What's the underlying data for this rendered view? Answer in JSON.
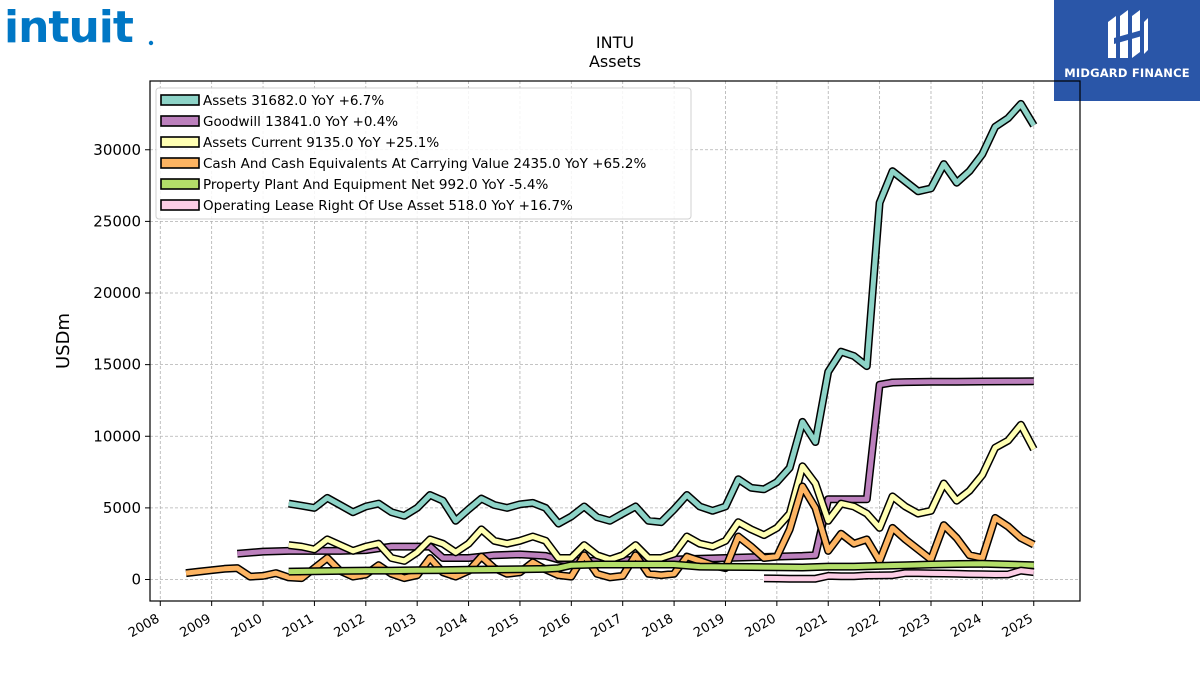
{
  "branding": {
    "left_logo_text": "intuit.",
    "right_logo_text": "MIDGARD FINANCE",
    "left_logo_color": "#0077c5",
    "right_logo_bg": "#2a56a8"
  },
  "chart_data": {
    "type": "line",
    "title": "INTU",
    "subtitle": "Assets",
    "xlabel": "",
    "ylabel": "USDm",
    "xlim": [
      2007.8,
      2025.9
    ],
    "ylim": [
      -1500,
      34800
    ],
    "yticks": [
      0,
      5000,
      10000,
      15000,
      20000,
      25000,
      30000
    ],
    "xticks": [
      "2008",
      "2009",
      "2010",
      "2011",
      "2012",
      "2013",
      "2014",
      "2015",
      "2016",
      "2017",
      "2018",
      "2019",
      "2020",
      "2021",
      "2022",
      "2023",
      "2024",
      "2025"
    ],
    "grid": true,
    "legend_position": "top-left",
    "series": [
      {
        "name": "Assets  31682.0 YoY +6.7%",
        "color": "#8dd3c7",
        "x": [
          2010.5,
          2010.75,
          2011.0,
          2011.25,
          2011.5,
          2011.75,
          2012.0,
          2012.25,
          2012.5,
          2012.75,
          2013.0,
          2013.25,
          2013.5,
          2013.75,
          2014.0,
          2014.25,
          2014.5,
          2014.75,
          2015.0,
          2015.25,
          2015.5,
          2015.75,
          2016.0,
          2016.25,
          2016.5,
          2016.75,
          2017.0,
          2017.25,
          2017.5,
          2017.75,
          2018.0,
          2018.25,
          2018.5,
          2018.75,
          2019.0,
          2019.25,
          2019.5,
          2019.75,
          2020.0,
          2020.25,
          2020.5,
          2020.75,
          2021.0,
          2021.25,
          2021.5,
          2021.75,
          2022.0,
          2022.25,
          2022.5,
          2022.75,
          2023.0,
          2023.25,
          2023.5,
          2023.75,
          2024.0,
          2024.25,
          2024.5,
          2024.75,
          2025.0
        ],
        "y": [
          5300,
          5150,
          5000,
          5700,
          5200,
          4700,
          5100,
          5300,
          4700,
          4450,
          5000,
          5900,
          5500,
          4100,
          4900,
          5650,
          5200,
          5000,
          5250,
          5350,
          5000,
          3900,
          4400,
          5100,
          4350,
          4100,
          4600,
          5100,
          4100,
          4000,
          4900,
          5900,
          5100,
          4800,
          5100,
          7000,
          6400,
          6300,
          6800,
          7800,
          11000,
          9600,
          14500,
          15900,
          15600,
          14900,
          26300,
          28500,
          27800,
          27100,
          27300,
          29000,
          27700,
          28500,
          29700,
          31600,
          32200,
          33200,
          31700
        ]
      },
      {
        "name": "Goodwill  13841.0 YoY +0.4%",
        "color": "#bc80bd",
        "x": [
          2009.5,
          2010.0,
          2010.5,
          2011.0,
          2011.5,
          2012.0,
          2012.5,
          2013.0,
          2013.25,
          2013.5,
          2014.0,
          2014.5,
          2015.0,
          2015.5,
          2015.75,
          2016.0,
          2016.5,
          2017.0,
          2017.5,
          2018.0,
          2018.5,
          2019.0,
          2019.5,
          2020.0,
          2020.5,
          2020.75,
          2021.0,
          2021.25,
          2021.5,
          2021.75,
          2022.0,
          2022.25,
          2022.5,
          2023.0,
          2023.5,
          2024.0,
          2024.5,
          2025.0
        ],
        "y": [
          1800,
          1950,
          2000,
          2000,
          2000,
          2050,
          2300,
          2300,
          2300,
          1500,
          1500,
          1700,
          1750,
          1650,
          1400,
          1300,
          1300,
          1350,
          1400,
          1400,
          1450,
          1500,
          1550,
          1600,
          1650,
          1700,
          5600,
          5600,
          5600,
          5600,
          13600,
          13750,
          13780,
          13800,
          13800,
          13820,
          13830,
          13841
        ]
      },
      {
        "name": "Assets Current  9135.0 YoY +25.1%",
        "color": "#ffffb3",
        "x": [
          2010.5,
          2010.75,
          2011.0,
          2011.25,
          2011.5,
          2011.75,
          2012.0,
          2012.25,
          2012.5,
          2012.75,
          2013.0,
          2013.25,
          2013.5,
          2013.75,
          2014.0,
          2014.25,
          2014.5,
          2014.75,
          2015.0,
          2015.25,
          2015.5,
          2015.75,
          2016.0,
          2016.25,
          2016.5,
          2016.75,
          2017.0,
          2017.25,
          2017.5,
          2017.75,
          2018.0,
          2018.25,
          2018.5,
          2018.75,
          2019.0,
          2019.25,
          2019.5,
          2019.75,
          2020.0,
          2020.25,
          2020.5,
          2020.75,
          2021.0,
          2021.25,
          2021.5,
          2021.75,
          2022.0,
          2022.25,
          2022.5,
          2022.75,
          2023.0,
          2023.25,
          2023.5,
          2023.75,
          2024.0,
          2024.25,
          2024.5,
          2024.75,
          2025.0
        ],
        "y": [
          2400,
          2300,
          2100,
          2800,
          2400,
          2000,
          2300,
          2500,
          1500,
          1300,
          1900,
          2800,
          2500,
          1900,
          2500,
          3500,
          2700,
          2500,
          2700,
          3000,
          2700,
          1500,
          1500,
          2400,
          1700,
          1400,
          1700,
          2400,
          1500,
          1500,
          1800,
          3000,
          2500,
          2300,
          2700,
          4000,
          3500,
          3100,
          3600,
          4600,
          7900,
          6700,
          4100,
          5300,
          5100,
          4600,
          3600,
          5800,
          5100,
          4600,
          4800,
          6700,
          5500,
          6200,
          7300,
          9200,
          9700,
          10800,
          9100
        ]
      },
      {
        "name": "Cash And Cash Equivalents At Carrying Value  2435.0 YoY +65.2%",
        "color": "#fdb462",
        "x": [
          2008.5,
          2008.75,
          2009.0,
          2009.25,
          2009.5,
          2009.75,
          2010.0,
          2010.25,
          2010.5,
          2010.75,
          2011.0,
          2011.25,
          2011.5,
          2011.75,
          2012.0,
          2012.25,
          2012.5,
          2012.75,
          2013.0,
          2013.25,
          2013.5,
          2013.75,
          2014.0,
          2014.25,
          2014.5,
          2014.75,
          2015.0,
          2015.25,
          2015.5,
          2015.75,
          2016.0,
          2016.25,
          2016.5,
          2016.75,
          2017.0,
          2017.25,
          2017.5,
          2017.75,
          2018.0,
          2018.25,
          2018.5,
          2018.75,
          2019.0,
          2019.25,
          2019.5,
          2019.75,
          2020.0,
          2020.25,
          2020.5,
          2020.75,
          2021.0,
          2021.25,
          2021.5,
          2021.75,
          2022.0,
          2022.25,
          2022.5,
          2022.75,
          2023.0,
          2023.25,
          2023.5,
          2023.75,
          2024.0,
          2024.25,
          2024.5,
          2024.75,
          2025.0
        ],
        "y": [
          450,
          550,
          650,
          750,
          800,
          200,
          250,
          450,
          150,
          100,
          800,
          1500,
          600,
          200,
          350,
          1000,
          400,
          100,
          300,
          1500,
          500,
          200,
          600,
          1600,
          800,
          400,
          500,
          1200,
          700,
          300,
          200,
          1700,
          400,
          150,
          250,
          1700,
          400,
          300,
          400,
          1600,
          1300,
          1000,
          800,
          3000,
          2300,
          1500,
          1600,
          3500,
          6500,
          5000,
          2000,
          3200,
          2500,
          2800,
          1300,
          3600,
          2800,
          2100,
          1400,
          3800,
          2900,
          1700,
          1500,
          4300,
          3700,
          2900,
          2435
        ]
      },
      {
        "name": "Property Plant And Equipment Net  992.0 YoY -5.4%",
        "color": "#b3de69",
        "x": [
          2010.5,
          2011.0,
          2011.5,
          2012.0,
          2012.5,
          2013.0,
          2013.5,
          2014.0,
          2014.5,
          2015.0,
          2015.5,
          2015.75,
          2016.0,
          2016.5,
          2017.0,
          2017.5,
          2018.0,
          2018.5,
          2019.0,
          2019.5,
          2020.0,
          2020.5,
          2021.0,
          2021.5,
          2022.0,
          2022.5,
          2023.0,
          2023.5,
          2024.0,
          2024.5,
          2025.0
        ],
        "y": [
          550,
          580,
          600,
          620,
          620,
          640,
          660,
          680,
          700,
          720,
          740,
          800,
          1000,
          1050,
          1050,
          1050,
          1050,
          900,
          880,
          870,
          860,
          840,
          900,
          900,
          950,
          1000,
          1050,
          1080,
          1100,
          1050,
          992
        ]
      },
      {
        "name": "Operating Lease Right Of Use Asset  518.0 YoY +16.7%",
        "color": "#fccde5",
        "x": [
          2019.75,
          2020.0,
          2020.25,
          2020.5,
          2020.75,
          2021.0,
          2021.25,
          2021.5,
          2021.75,
          2022.0,
          2022.25,
          2022.5,
          2022.75,
          2023.0,
          2023.25,
          2023.5,
          2023.75,
          2024.0,
          2024.25,
          2024.5,
          2024.75,
          2025.0
        ],
        "y": [
          80,
          70,
          60,
          50,
          60,
          250,
          230,
          230,
          280,
          290,
          300,
          450,
          450,
          430,
          420,
          400,
          380,
          370,
          350,
          360,
          620,
          518
        ]
      }
    ]
  }
}
